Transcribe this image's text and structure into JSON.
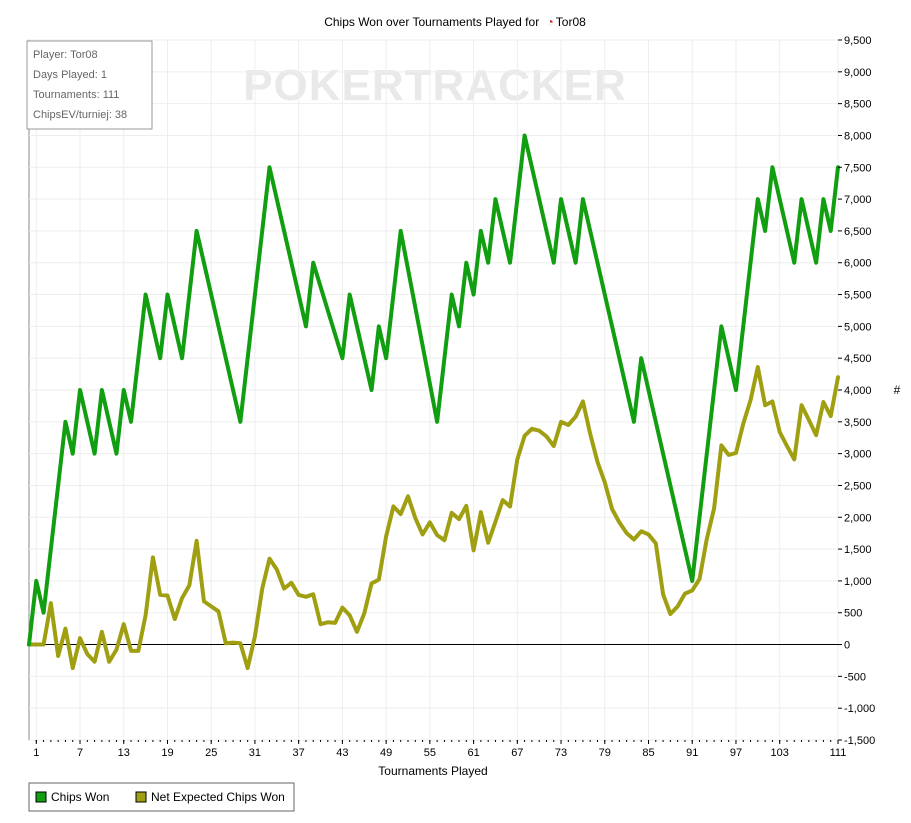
{
  "chart_data": {
    "type": "line",
    "title": "Chips Won over Tournaments Played for",
    "player_name": "Tor08",
    "title_icon": "player-site-icon",
    "xlabel": "Tournaments Played",
    "ylabel": "#",
    "watermark": "POKERTRACKER",
    "ylim": [
      -1500,
      9500
    ],
    "y_ticks": [
      "-1,500",
      "-1,000",
      "-500",
      "0",
      "500",
      "1,000",
      "1,500",
      "2,000",
      "2,500",
      "3,000",
      "3,500",
      "4,000",
      "4,500",
      "5,000",
      "5,500",
      "6,000",
      "6,500",
      "7,000",
      "7,500",
      "8,000",
      "8,500",
      "9,000",
      "9,500"
    ],
    "x_ticks": [
      "1",
      "7",
      "13",
      "19",
      "25",
      "31",
      "37",
      "43",
      "49",
      "55",
      "61",
      "67",
      "73",
      "79",
      "85",
      "91",
      "97",
      "103",
      "111"
    ],
    "grid": true,
    "legend_position": "bottom-left",
    "series": [
      {
        "name": "Chips Won",
        "color": "#119e11",
        "points": [
          [
            0,
            0
          ],
          [
            1,
            1000
          ],
          [
            2,
            500
          ],
          [
            5,
            3500
          ],
          [
            6,
            3000
          ],
          [
            7,
            4000
          ],
          [
            9,
            3000
          ],
          [
            10,
            4000
          ],
          [
            12,
            3000
          ],
          [
            13,
            4000
          ],
          [
            14,
            3500
          ],
          [
            16,
            5500
          ],
          [
            18,
            4500
          ],
          [
            19,
            5500
          ],
          [
            21,
            4500
          ],
          [
            23,
            6500
          ],
          [
            29,
            3500
          ],
          [
            33,
            7500
          ],
          [
            38,
            5000
          ],
          [
            39,
            6000
          ],
          [
            43,
            4500
          ],
          [
            44,
            5500
          ],
          [
            47,
            4000
          ],
          [
            48,
            5000
          ],
          [
            49,
            4500
          ],
          [
            51,
            6500
          ],
          [
            56,
            3500
          ],
          [
            58,
            5500
          ],
          [
            59,
            5000
          ],
          [
            60,
            6000
          ],
          [
            61,
            5500
          ],
          [
            62,
            6500
          ],
          [
            63,
            6000
          ],
          [
            64,
            7000
          ],
          [
            66,
            6000
          ],
          [
            68,
            8000
          ],
          [
            72,
            6000
          ],
          [
            73,
            7000
          ],
          [
            75,
            6000
          ],
          [
            76,
            7000
          ],
          [
            83,
            3500
          ],
          [
            84,
            4500
          ],
          [
            91,
            1000
          ],
          [
            95,
            5000
          ],
          [
            97,
            4000
          ],
          [
            100,
            7000
          ],
          [
            101,
            6500
          ],
          [
            102,
            7500
          ],
          [
            105,
            6000
          ],
          [
            106,
            7000
          ],
          [
            108,
            6000
          ],
          [
            109,
            7000
          ],
          [
            110,
            6500
          ],
          [
            111,
            7500
          ]
        ]
      },
      {
        "name": "Net Expected Chips Won",
        "color": "#9f9f11",
        "points": [
          [
            0,
            0
          ],
          [
            1,
            0
          ],
          [
            2,
            0
          ],
          [
            3,
            650
          ],
          [
            4,
            -180
          ],
          [
            5,
            250
          ],
          [
            6,
            -370
          ],
          [
            7,
            100
          ],
          [
            8,
            -150
          ],
          [
            9,
            -270
          ],
          [
            10,
            200
          ],
          [
            11,
            -270
          ],
          [
            12,
            -80
          ],
          [
            13,
            320
          ],
          [
            14,
            -100
          ],
          [
            15,
            -100
          ],
          [
            16,
            460
          ],
          [
            17,
            1370
          ],
          [
            18,
            780
          ],
          [
            19,
            770
          ],
          [
            20,
            400
          ],
          [
            21,
            730
          ],
          [
            22,
            930
          ],
          [
            23,
            1630
          ],
          [
            24,
            680
          ],
          [
            25,
            600
          ],
          [
            26,
            520
          ],
          [
            27,
            20
          ],
          [
            28,
            30
          ],
          [
            29,
            20
          ],
          [
            30,
            -370
          ],
          [
            31,
            130
          ],
          [
            32,
            880
          ],
          [
            33,
            1350
          ],
          [
            34,
            1180
          ],
          [
            35,
            880
          ],
          [
            36,
            970
          ],
          [
            37,
            780
          ],
          [
            38,
            750
          ],
          [
            39,
            790
          ],
          [
            40,
            320
          ],
          [
            41,
            350
          ],
          [
            42,
            340
          ],
          [
            43,
            580
          ],
          [
            44,
            460
          ],
          [
            45,
            200
          ],
          [
            46,
            490
          ],
          [
            47,
            960
          ],
          [
            48,
            1020
          ],
          [
            49,
            1700
          ],
          [
            50,
            2170
          ],
          [
            51,
            2050
          ],
          [
            52,
            2330
          ],
          [
            53,
            1990
          ],
          [
            54,
            1730
          ],
          [
            55,
            1920
          ],
          [
            56,
            1720
          ],
          [
            57,
            1640
          ],
          [
            58,
            2070
          ],
          [
            59,
            1970
          ],
          [
            60,
            2180
          ],
          [
            61,
            1480
          ],
          [
            62,
            2080
          ],
          [
            63,
            1600
          ],
          [
            64,
            1930
          ],
          [
            65,
            2270
          ],
          [
            66,
            2170
          ],
          [
            67,
            2910
          ],
          [
            68,
            3280
          ],
          [
            69,
            3390
          ],
          [
            70,
            3360
          ],
          [
            71,
            3270
          ],
          [
            72,
            3120
          ],
          [
            73,
            3500
          ],
          [
            74,
            3450
          ],
          [
            75,
            3580
          ],
          [
            76,
            3820
          ],
          [
            77,
            3310
          ],
          [
            78,
            2870
          ],
          [
            79,
            2550
          ],
          [
            80,
            2130
          ],
          [
            81,
            1920
          ],
          [
            82,
            1750
          ],
          [
            83,
            1650
          ],
          [
            84,
            1780
          ],
          [
            85,
            1730
          ],
          [
            86,
            1590
          ],
          [
            87,
            790
          ],
          [
            88,
            480
          ],
          [
            89,
            600
          ],
          [
            90,
            800
          ],
          [
            91,
            850
          ],
          [
            92,
            1030
          ],
          [
            93,
            1660
          ],
          [
            94,
            2140
          ],
          [
            95,
            3130
          ],
          [
            96,
            2980
          ],
          [
            97,
            3010
          ],
          [
            98,
            3470
          ],
          [
            99,
            3840
          ],
          [
            100,
            4360
          ],
          [
            101,
            3760
          ],
          [
            102,
            3820
          ],
          [
            103,
            3340
          ],
          [
            104,
            3120
          ],
          [
            105,
            2910
          ],
          [
            106,
            3760
          ],
          [
            107,
            3530
          ],
          [
            108,
            3290
          ],
          [
            109,
            3810
          ],
          [
            110,
            3590
          ],
          [
            111,
            4200
          ]
        ]
      }
    ]
  },
  "info_box": {
    "lines": [
      "Player: Tor08",
      "Days Played: 1",
      "Tournaments: 111",
      "ChipsEV/turniej: 38"
    ]
  }
}
